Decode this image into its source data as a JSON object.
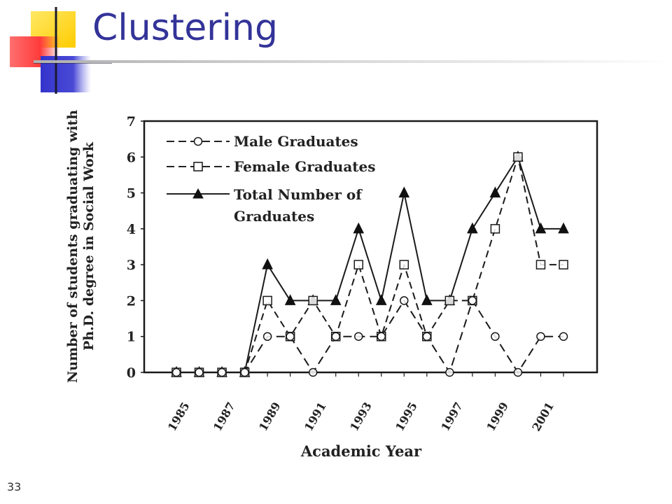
{
  "slide": {
    "title": "Clustering",
    "number": "33",
    "accent_colors": {
      "yellow": "#ffd700",
      "red": "#ff3333",
      "blue": "#3333cc",
      "title": "#333399"
    }
  },
  "chart_data": {
    "type": "line",
    "ylabel_line1": "Number of students graduating with",
    "ylabel_line2": "Ph.D. degree in Social Work",
    "xlabel": "Academic Year",
    "ylim": [
      0,
      7
    ],
    "yticks": [
      "0",
      "1",
      "2",
      "3",
      "4",
      "5",
      "6",
      "7"
    ],
    "x": [
      1985,
      1986,
      1987,
      1988,
      1989,
      1990,
      1991,
      1992,
      1993,
      1994,
      1995,
      1996,
      1997,
      1998,
      1999,
      2000,
      2001,
      2002
    ],
    "xtick_labels": [
      "1985",
      "1987",
      "1989",
      "1991",
      "1993",
      "1995",
      "1997",
      "1999",
      "2001"
    ],
    "grid": false,
    "legend_position": "top-left",
    "series": [
      {
        "name": "Male Graduates",
        "marker": "circle",
        "line": "dashed",
        "values": [
          0,
          0,
          0,
          0,
          1,
          1,
          0,
          1,
          1,
          1,
          2,
          1,
          0,
          2,
          1,
          0,
          1,
          1
        ]
      },
      {
        "name": "Female Graduates",
        "marker": "square",
        "line": "dashed",
        "values": [
          0,
          0,
          0,
          0,
          2,
          1,
          2,
          1,
          3,
          1,
          3,
          1,
          2,
          2,
          4,
          6,
          3,
          3
        ]
      },
      {
        "name_line1": "Total Number of",
        "name_line2": "Graduates",
        "marker": "triangle",
        "line": "solid",
        "values": [
          0,
          0,
          0,
          0,
          3,
          2,
          2,
          2,
          4,
          2,
          5,
          2,
          2,
          4,
          5,
          6,
          4,
          4
        ]
      }
    ]
  }
}
